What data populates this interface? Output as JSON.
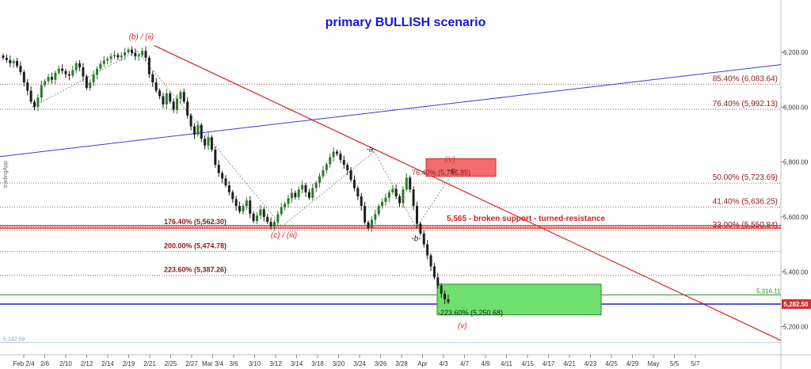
{
  "chart_data": {
    "type": "candlestick",
    "title": "primary BULLISH scenario",
    "ylim": [
      5110,
      6290
    ],
    "y_ticks": [
      {
        "value": 6200,
        "label": "6,200.00"
      },
      {
        "value": 6000,
        "label": "6,000.00"
      },
      {
        "value": 5800,
        "label": "5,800.00"
      },
      {
        "value": 5600,
        "label": "5,600.00"
      },
      {
        "value": 5400,
        "label": "5,400.00"
      },
      {
        "value": 5200,
        "label": "5,200.00"
      }
    ],
    "x_ticks": [
      "Feb 2/4",
      "2/6",
      "2/10",
      "2/12",
      "2/14",
      "2/19",
      "2/21",
      "2/25",
      "2/27",
      "Mar 3/4",
      "3/6",
      "3/10",
      "3/12",
      "3/14",
      "3/18",
      "3/20",
      "3/24",
      "3/26",
      "3/28",
      "Apr",
      "4/3",
      "4/7",
      "4/9",
      "4/11",
      "4/15",
      "4/17",
      "4/21",
      "4/23",
      "4/25",
      "4/29",
      "May",
      "5/5",
      "5/7"
    ],
    "price_tags": [
      {
        "label": "5,316.11",
        "value": 5316.11,
        "color": "#2e8b2e"
      },
      {
        "label": "5,282.50",
        "value": 5282.5,
        "color": "#d32f2f"
      },
      {
        "label": "5,142.09",
        "value": 5142.09,
        "color": "#9bb7d4"
      }
    ],
    "fib_levels_right": [
      {
        "label": "85.40% (6,083.64)",
        "value": 6083.64
      },
      {
        "label": "76.40% (5,992.13)",
        "value": 5992.13
      },
      {
        "label": "50.00% (5,723.69)",
        "value": 5723.69
      },
      {
        "label": "41.40% (5,636.25)",
        "value": 5636.25
      },
      {
        "label": "33.00% (5,550.84)",
        "value": 5550.84
      }
    ],
    "fib_levels_left": [
      {
        "label": "176.40% (5,562.30)",
        "value": 5562.3
      },
      {
        "label": "200.00% (5,474.78)",
        "value": 5474.78
      },
      {
        "label": "223.60% (5,387.26)",
        "value": 5387.26
      }
    ],
    "box_labels": [
      {
        "label": "76.40% (5,746.85)",
        "value": 5746.85
      },
      {
        "label": "-223.60% (5,250.68)",
        "value": 5250.68
      }
    ],
    "support_level": {
      "value": 5565,
      "label": "5,565 - broken support - turned-resistance"
    },
    "wave_labels": [
      {
        "label": "(b) / (ii)",
        "x_index": 5.6,
        "value": 6248,
        "color": "#d32f2f"
      },
      {
        "label": "(c) / (iii)",
        "x_index": 12.4,
        "value": 5525,
        "color": "#d32f2f"
      },
      {
        "label": "-a-",
        "x_index": 16.55,
        "value": 5838,
        "color": "#222222"
      },
      {
        "label": "(iv)",
        "x_index": 20.3,
        "value": 5800,
        "color": "#d32f2f"
      },
      {
        "label": "-c-",
        "x_index": 20.45,
        "value": 5760,
        "color": "#222222"
      },
      {
        "label": "-b-",
        "x_index": 18.7,
        "value": 5512,
        "color": "#222222"
      },
      {
        "label": "(v)",
        "x_index": 20.9,
        "value": 5195,
        "color": "#d32f2f"
      }
    ],
    "watermark": "tradingApp",
    "candles_close": [
      6180,
      6172,
      6160,
      6168,
      6150,
      6128,
      6090,
      6060,
      6020,
      6000,
      6035,
      6080,
      6095,
      6110,
      6100,
      6125,
      6140,
      6132,
      6120,
      6115,
      6135,
      6160,
      6145,
      6112,
      6070,
      6090,
      6118,
      6140,
      6158,
      6170,
      6176,
      6185,
      6190,
      6182,
      6188,
      6200,
      6210,
      6198,
      6185,
      6190,
      6205,
      6180,
      6120,
      6090,
      6060,
      6040,
      6010,
      6050,
      6020,
      5990,
      6030,
      6055,
      6020,
      5970,
      5930,
      5900,
      5935,
      5885,
      5860,
      5890,
      5845,
      5790,
      5760,
      5740,
      5715,
      5690,
      5665,
      5640,
      5620,
      5640,
      5660,
      5612,
      5585,
      5605,
      5628,
      5600,
      5582,
      5565,
      5582,
      5610,
      5635,
      5648,
      5668,
      5688,
      5672,
      5700,
      5716,
      5690,
      5670,
      5705,
      5725,
      5748,
      5770,
      5792,
      5818,
      5838,
      5830,
      5808,
      5790,
      5770,
      5735,
      5705,
      5675,
      5640,
      5580,
      5560,
      5590,
      5610,
      5640,
      5655,
      5670,
      5690,
      5702,
      5675,
      5650,
      5700,
      5743,
      5700,
      5640,
      5575,
      5540,
      5500,
      5460,
      5420,
      5380,
      5350,
      5320,
      5300,
      5290
    ]
  }
}
